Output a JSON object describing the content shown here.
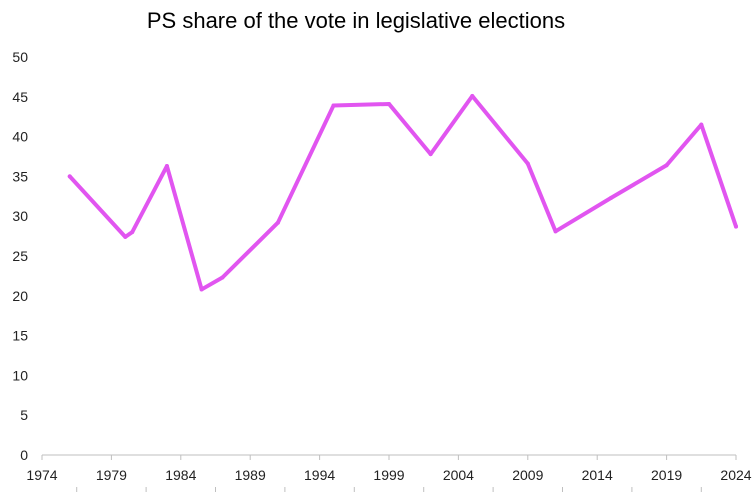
{
  "chart_data": {
    "type": "line",
    "title": "PS share of the vote in legislative elections",
    "xlabel": "",
    "ylabel": "",
    "xlim": [
      1974,
      2024
    ],
    "ylim": [
      0,
      50
    ],
    "x_ticks": [
      1974,
      1979,
      1984,
      1989,
      1994,
      1999,
      2004,
      2009,
      2014,
      2019,
      2024
    ],
    "y_ticks": [
      0,
      5,
      10,
      15,
      20,
      25,
      30,
      35,
      40,
      45,
      50
    ],
    "grid": false,
    "legend": "none",
    "series": [
      {
        "name": "PS",
        "color": "#e155f0",
        "x": [
          1976,
          1980,
          1980.5,
          1983,
          1985.5,
          1987,
          1991,
          1995,
          1999,
          2002,
          2005,
          2009,
          2011,
          2015,
          2019,
          2021.5,
          2024
        ],
        "y": [
          35.0,
          27.4,
          28.0,
          36.3,
          20.8,
          22.3,
          29.2,
          43.9,
          44.1,
          37.8,
          45.1,
          36.6,
          28.1,
          32.3,
          36.4,
          41.5,
          28.7
        ]
      }
    ]
  }
}
